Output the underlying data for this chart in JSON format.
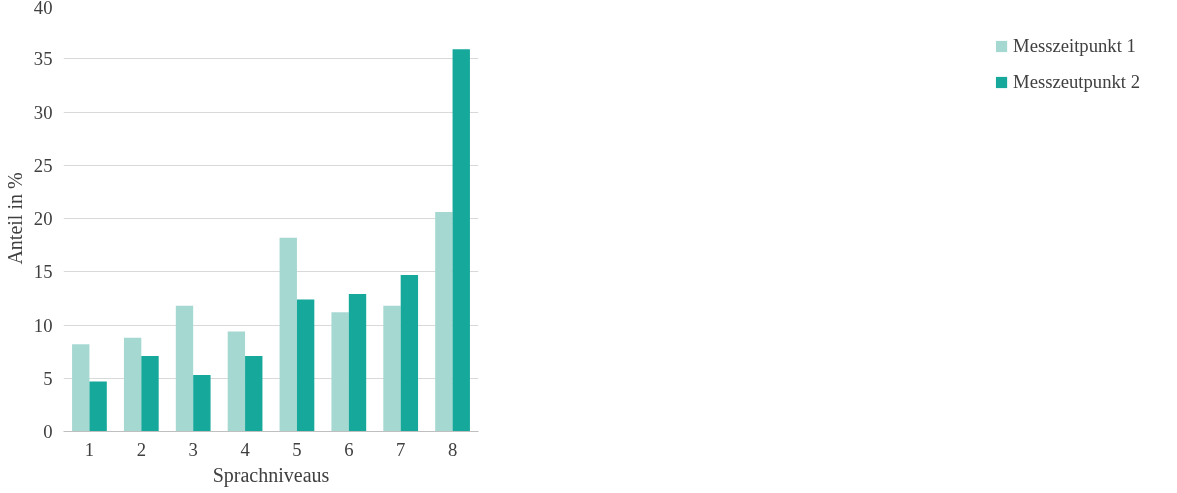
{
  "chart_data": {
    "type": "bar",
    "xlabel": "Sprachniveaus",
    "ylabel": "Anteil in %",
    "categories": [
      "1",
      "2",
      "3",
      "4",
      "5",
      "6",
      "7",
      "8"
    ],
    "series": [
      {
        "name": "Messzeitpunkt 1",
        "color": "#a5d8d1",
        "values": [
          8.2,
          8.8,
          11.8,
          9.4,
          18.2,
          11.2,
          11.8,
          20.6
        ]
      },
      {
        "name": "Messzeutpunkt 2",
        "color": "#16a89b",
        "values": [
          4.7,
          7.1,
          5.3,
          7.1,
          12.4,
          12.9,
          14.7,
          35.9
        ]
      }
    ],
    "ylim": [
      0,
      40
    ],
    "yticks": [
      0,
      5,
      10,
      15,
      20,
      25,
      30,
      35,
      40
    ],
    "grid": "y",
    "legend": "right"
  }
}
